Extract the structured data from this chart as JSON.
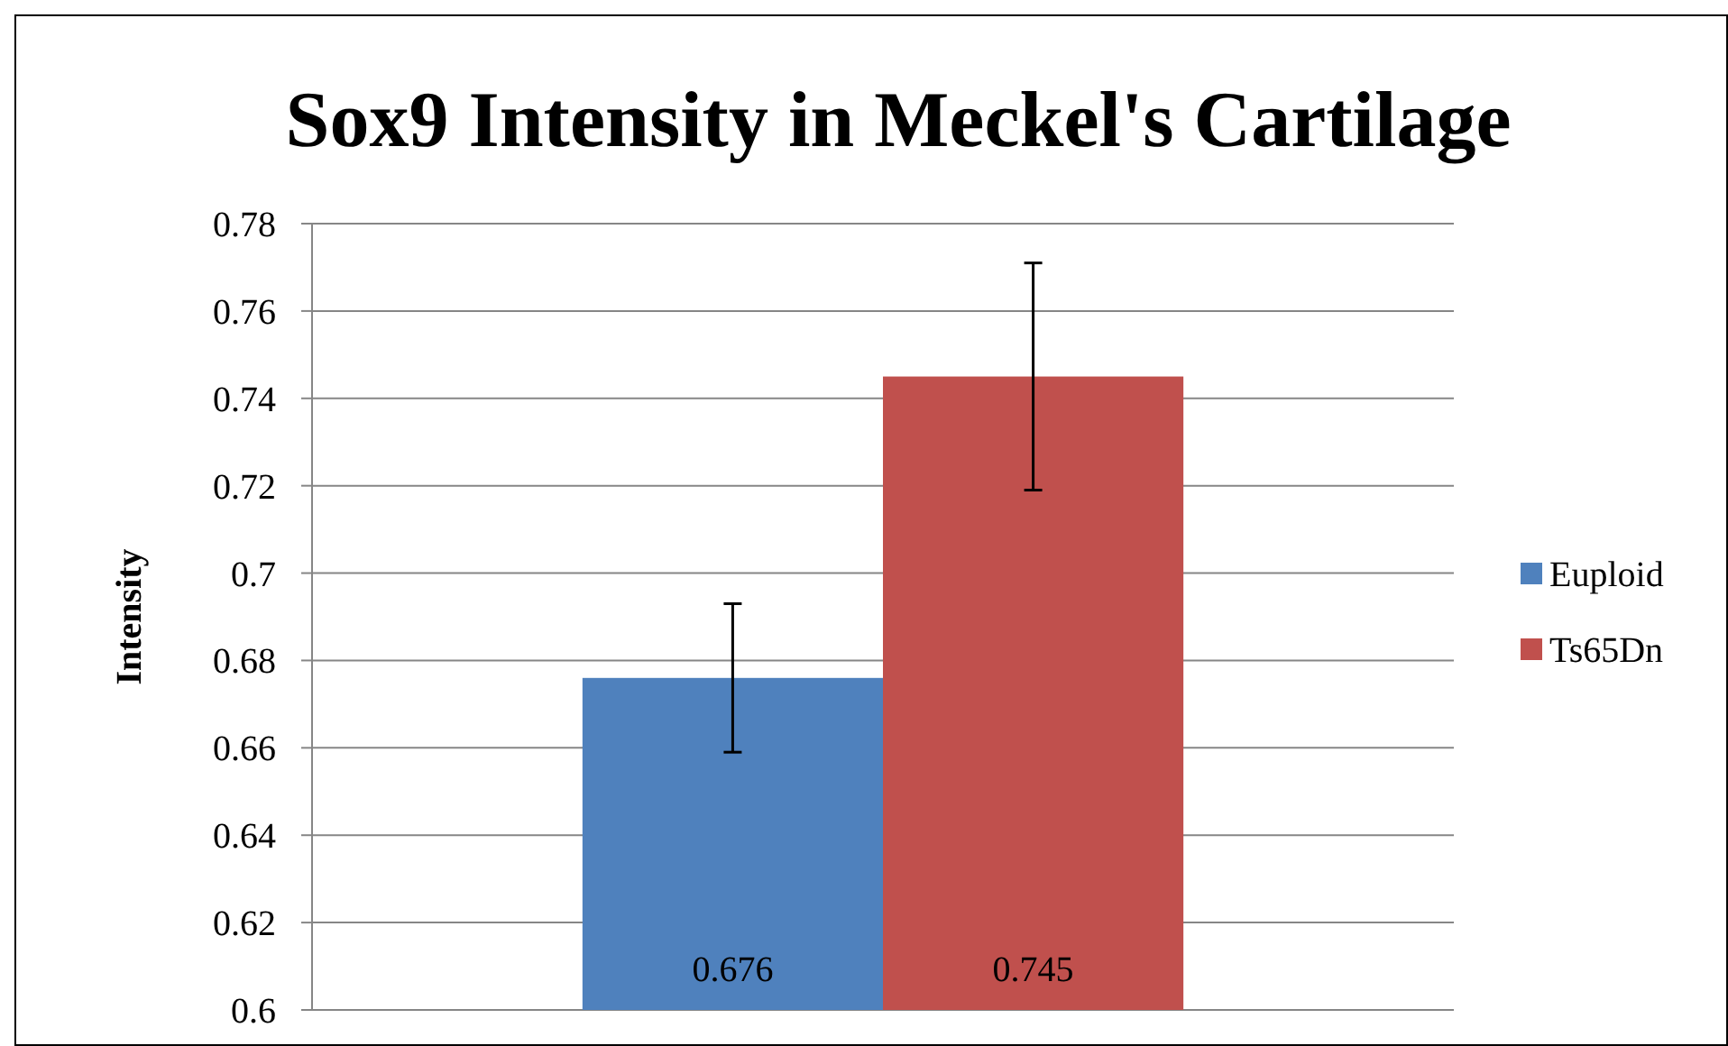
{
  "chart_data": {
    "type": "bar",
    "title": "Sox9 Intensity in Meckel's Cartilage",
    "ylabel": "Intensity",
    "categories": [
      null
    ],
    "series": [
      {
        "name": "Euploid",
        "color": "#4f81bd",
        "values": [
          0.676
        ],
        "errors": [
          0.017
        ]
      },
      {
        "name": "Ts65Dn",
        "color": "#c0504d",
        "values": [
          0.745
        ],
        "errors": [
          0.026
        ]
      }
    ],
    "ylim": [
      0.6,
      0.78
    ],
    "yticks": [
      0.6,
      0.62,
      0.64,
      0.66,
      0.68,
      0.7,
      0.72,
      0.74,
      0.76,
      0.78
    ],
    "grid": "y",
    "legend": "right",
    "data_labels": true
  }
}
